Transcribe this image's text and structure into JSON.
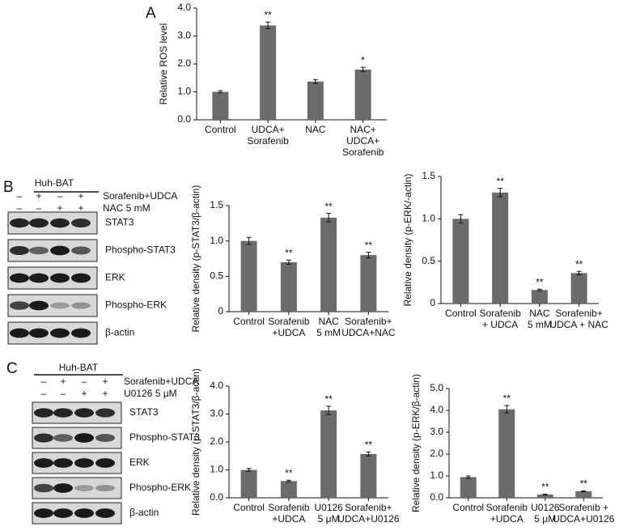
{
  "panel_labels": [
    "A",
    "B",
    "C"
  ],
  "chart_data": [
    {
      "type": "bar",
      "y_label": "Relative ROS level",
      "color": "#6b6b6b",
      "categories": [
        [
          "Control"
        ],
        [
          "UDCA+",
          "Sorafenib"
        ],
        [
          "NAC"
        ],
        [
          "NAC+",
          "UDCA+",
          "Sorafenib"
        ]
      ],
      "values": [
        1.0,
        3.38,
        1.37,
        1.8
      ],
      "errors": [
        0.04,
        0.12,
        0.07,
        0.08
      ],
      "annotations": [
        null,
        "**",
        null,
        "*"
      ],
      "ylim": [
        0,
        4
      ],
      "yticks": [
        {
          "value": 0,
          "label": "0.0"
        },
        {
          "value": 1,
          "label": "1.0"
        },
        {
          "value": 2,
          "label": "2.0"
        },
        {
          "value": 3,
          "label": "3.0"
        },
        {
          "value": 4,
          "label": "4.0"
        }
      ]
    },
    {
      "type": "bar",
      "y_label": "Relative density (p-STAT3/β-actin)",
      "color": "#6b6b6b",
      "categories": [
        [
          "Control"
        ],
        [
          "Sorafenib",
          "+UDCA"
        ],
        [
          "NAC",
          "5 mM"
        ],
        [
          "Sorafenib+",
          "UDCA+NAC"
        ]
      ],
      "values": [
        1.0,
        0.7,
        1.33,
        0.8
      ],
      "errors": [
        0.05,
        0.03,
        0.06,
        0.04
      ],
      "annotations": [
        null,
        "**",
        "**",
        "**"
      ],
      "ylim": [
        0,
        1.5
      ],
      "yticks": [
        0,
        0.5,
        {
          "value": 1,
          "label": "1.0"
        },
        1.5
      ]
    },
    {
      "type": "bar",
      "y_label": "Relative density (p-ERK/-actin)",
      "color": "#6b6b6b",
      "categories": [
        [
          "Control"
        ],
        [
          "Sorafenib",
          "+ UDCA"
        ],
        [
          "NAC",
          "5 mM"
        ],
        [
          "Sorafenib+",
          "UDCA + NAC"
        ]
      ],
      "values": [
        1.0,
        1.31,
        0.16,
        0.36
      ],
      "errors": [
        0.05,
        0.05,
        0.01,
        0.02
      ],
      "annotations": [
        null,
        "**",
        "**",
        "**"
      ],
      "ylim": [
        0,
        1.5
      ],
      "yticks": [
        0,
        0.5,
        {
          "value": 1,
          "label": "1.0"
        },
        1.5
      ]
    },
    {
      "type": "bar",
      "y_label": "Relative density (p-STAT3/β-actin)",
      "color": "#6b6b6b",
      "categories": [
        [
          "Control"
        ],
        [
          "Sorafenib",
          "+UDCA"
        ],
        [
          "U0126",
          "5 μM"
        ],
        [
          "Sorafenib+",
          "UDCA+U0126"
        ]
      ],
      "values": [
        1.0,
        0.6,
        3.13,
        1.57
      ],
      "errors": [
        0.05,
        0.03,
        0.15,
        0.07
      ],
      "annotations": [
        null,
        "**",
        "**",
        "**"
      ],
      "ylim": [
        0,
        4
      ],
      "yticks": [
        {
          "value": 0,
          "label": "0.0"
        },
        {
          "value": 1,
          "label": "1.0"
        },
        {
          "value": 2,
          "label": "2.0"
        },
        {
          "value": 3,
          "label": "3.0"
        },
        {
          "value": 4,
          "label": "4.0"
        }
      ]
    },
    {
      "type": "bar",
      "y_label": "Relative density (p-ERK/β-actin)",
      "color": "#6b6b6b",
      "categories": [
        [
          "Control"
        ],
        [
          "Sorafenib",
          "+UDCA"
        ],
        [
          "U0126",
          "5 μM"
        ],
        [
          "Sorafenib +",
          "UDCA+U0126"
        ]
      ],
      "values": [
        0.95,
        4.05,
        0.15,
        0.3
      ],
      "errors": [
        0.05,
        0.17,
        0.02,
        0.02
      ],
      "annotations": [
        null,
        "**",
        "**",
        "**"
      ],
      "ylim": [
        0,
        5
      ],
      "yticks": [
        {
          "value": 0,
          "label": "0.0"
        },
        {
          "value": 1,
          "label": "1.0"
        },
        {
          "value": 2,
          "label": "2.0"
        },
        {
          "value": 3,
          "label": "3.0"
        },
        {
          "value": 4,
          "label": "4.0"
        },
        {
          "value": 5,
          "label": "5.0"
        }
      ]
    }
  ],
  "blots": [
    {
      "cell_line": "Huh-BAT",
      "treatments": [
        {
          "label": "Sorafenib+UDCA",
          "signs": [
            "–",
            "+",
            "–",
            "+"
          ]
        },
        {
          "label": "NAC 5 mM",
          "signs": [
            "–",
            "–",
            "+",
            "+"
          ]
        }
      ],
      "bands": [
        "STAT3",
        "Phospho-STAT3",
        "ERK",
        "Phospho-ERK",
        "β-actin"
      ]
    },
    {
      "cell_line": "Huh-BAT",
      "treatments": [
        {
          "label": "Sorafenib+UDCA",
          "signs": [
            "–",
            "+",
            "–",
            "+"
          ]
        },
        {
          "label": "U0126 5 μM",
          "signs": [
            "–",
            "–",
            "+",
            "+"
          ]
        }
      ],
      "bands": [
        "STAT3",
        "Phospho-STAT3",
        "ERK",
        "Phospho-ERK",
        "β-actin"
      ]
    }
  ]
}
